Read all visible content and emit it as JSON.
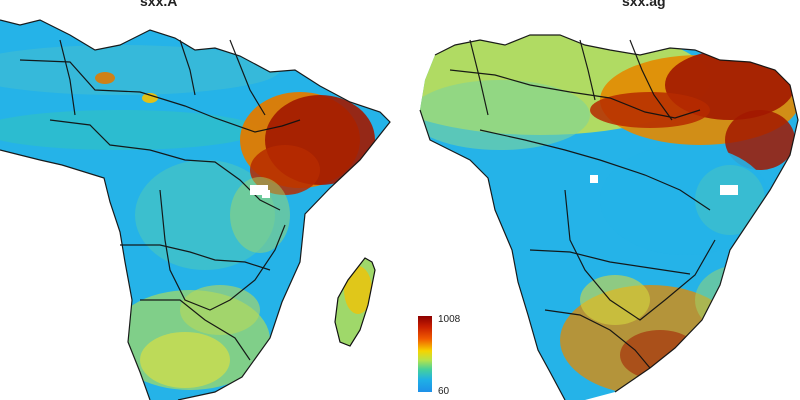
{
  "panels": [
    {
      "title": "sxx.A",
      "colors": {
        "base": "#25b3e8",
        "mid": "#6fd2a0",
        "hot": "#e07b00",
        "extreme": "#a21800"
      }
    },
    {
      "title": "sxx.ag",
      "colors": {
        "base": "#25b3e8",
        "mid": "#7ed39a",
        "hot": "#e48a00",
        "extreme": "#a21800"
      }
    }
  ],
  "legend": {
    "max_label": "1008",
    "min_label": "60",
    "gradient": [
      "#8b0000",
      "#c81e00",
      "#f15a00",
      "#f6d400",
      "#b6e34a",
      "#47d19a",
      "#1fb0e6",
      "#1e90e8"
    ]
  }
}
